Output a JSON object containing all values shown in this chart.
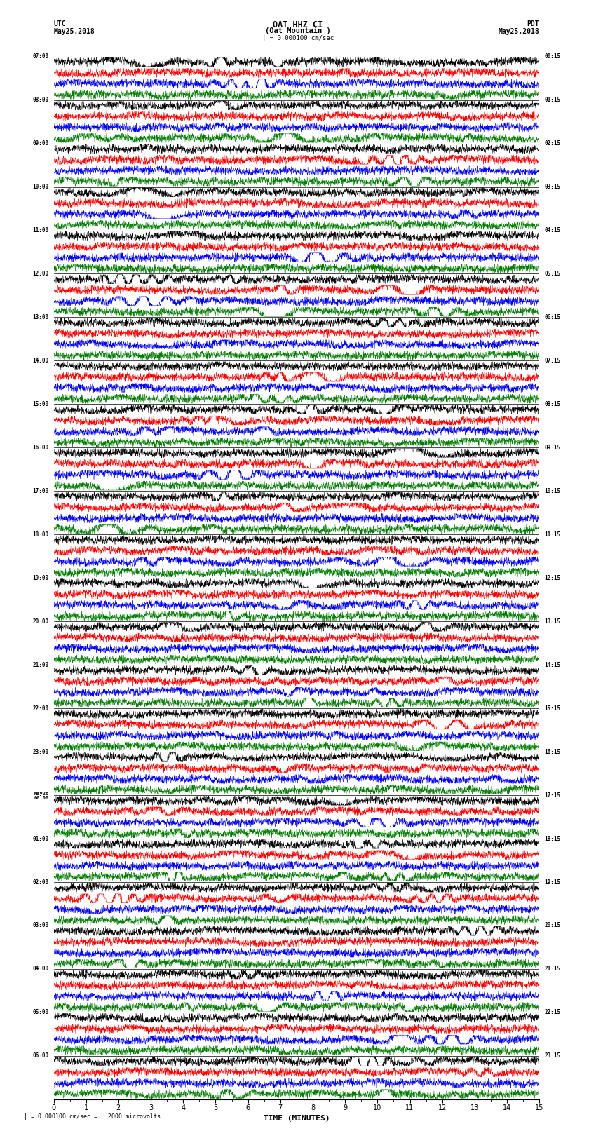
{
  "title_line1": "OAT HHZ CI",
  "title_line2": "(Oat Mountain )",
  "scale_bar": "| = 0.000100 cm/sec",
  "left_header": "UTC",
  "left_date": "May25,2018",
  "right_header": "PDT",
  "right_date": "May25,2018",
  "footer_note": "| = 0.000100 cm/sec =   2000 microvolts",
  "xlabel": "TIME (MINUTES)",
  "time_minutes": 15,
  "traces_per_hour": 4,
  "colors": [
    "black",
    "red",
    "blue",
    "green"
  ],
  "hour_labels_utc": [
    "07:00",
    "08:00",
    "09:00",
    "10:00",
    "11:00",
    "12:00",
    "13:00",
    "14:00",
    "15:00",
    "16:00",
    "17:00",
    "18:00",
    "19:00",
    "20:00",
    "21:00",
    "22:00",
    "23:00",
    "May26\n00:00",
    "01:00",
    "02:00",
    "03:00",
    "04:00",
    "05:00",
    "06:00"
  ],
  "hour_labels_pdt": [
    "00:15",
    "01:15",
    "02:15",
    "03:15",
    "04:15",
    "05:15",
    "06:15",
    "07:15",
    "08:15",
    "09:15",
    "10:15",
    "11:15",
    "12:15",
    "13:15",
    "14:15",
    "15:15",
    "16:15",
    "17:15",
    "18:15",
    "19:15",
    "20:15",
    "21:15",
    "22:15",
    "23:15"
  ],
  "bg_color": "white",
  "trace_amplitude": 0.42,
  "n_hours": 24,
  "n_points": 3000,
  "lw": 0.3
}
